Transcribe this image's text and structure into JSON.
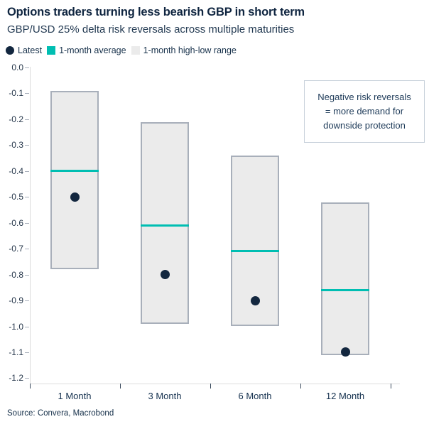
{
  "title": "Options traders turning less bearish GBP in short term",
  "subtitle": "GBP/USD 25% delta risk reversals across multiple maturities",
  "source": "Source: Convera, Macrobond",
  "legend": [
    {
      "label": "Latest",
      "swatch": "circle",
      "color_key": "latest"
    },
    {
      "label": "1-month average",
      "swatch": "square",
      "color_key": "average"
    },
    {
      "label": "1-month high-low range",
      "swatch": "square",
      "color_key": "range_fill"
    }
  ],
  "annotation": {
    "lines": [
      "Negative risk reversals",
      "= more demand for",
      "downside protection"
    ]
  },
  "colors": {
    "latest": "#13273F",
    "average": "#00BEB2",
    "range_fill": "#EBEBEB",
    "range_border": "#A8AFBA",
    "axis": "#DCDCDC",
    "navy_text": "#16304A"
  },
  "chart_data": {
    "type": "bar",
    "variant": "floating high-low range bars with average tick line and latest dot marker",
    "title": "Options traders turning less bearish GBP in short term",
    "subtitle": "GBP/USD 25% delta risk reversals across multiple maturities",
    "categories": [
      "1 Month",
      "3 Month",
      "6 Month",
      "12 Month"
    ],
    "series": [
      {
        "name": "Latest",
        "role": "latest",
        "marker": "dot",
        "values": [
          -0.5,
          -0.8,
          -0.9,
          -1.1
        ]
      },
      {
        "name": "1-month average",
        "role": "average",
        "marker": "line",
        "values": [
          -0.4,
          -0.61,
          -0.71,
          -0.86
        ]
      },
      {
        "name": "1-month high-low range",
        "role": "range",
        "marker": "box",
        "high": [
          -0.09,
          -0.21,
          -0.34,
          -0.52
        ],
        "low": [
          -0.78,
          -0.99,
          -1.0,
          -1.11
        ]
      }
    ],
    "xlabel": "",
    "ylabel": "",
    "ylim": [
      -1.2,
      0.0
    ],
    "ytick_step": 0.1,
    "yticks": [
      "0.0",
      "-0.1",
      "-0.2",
      "-0.3",
      "-0.4",
      "-0.5",
      "-0.6",
      "-0.7",
      "-0.8",
      "-0.9",
      "-1.0",
      "-1.1",
      "-1.2"
    ],
    "grid": false,
    "legend_position": "top-left"
  }
}
